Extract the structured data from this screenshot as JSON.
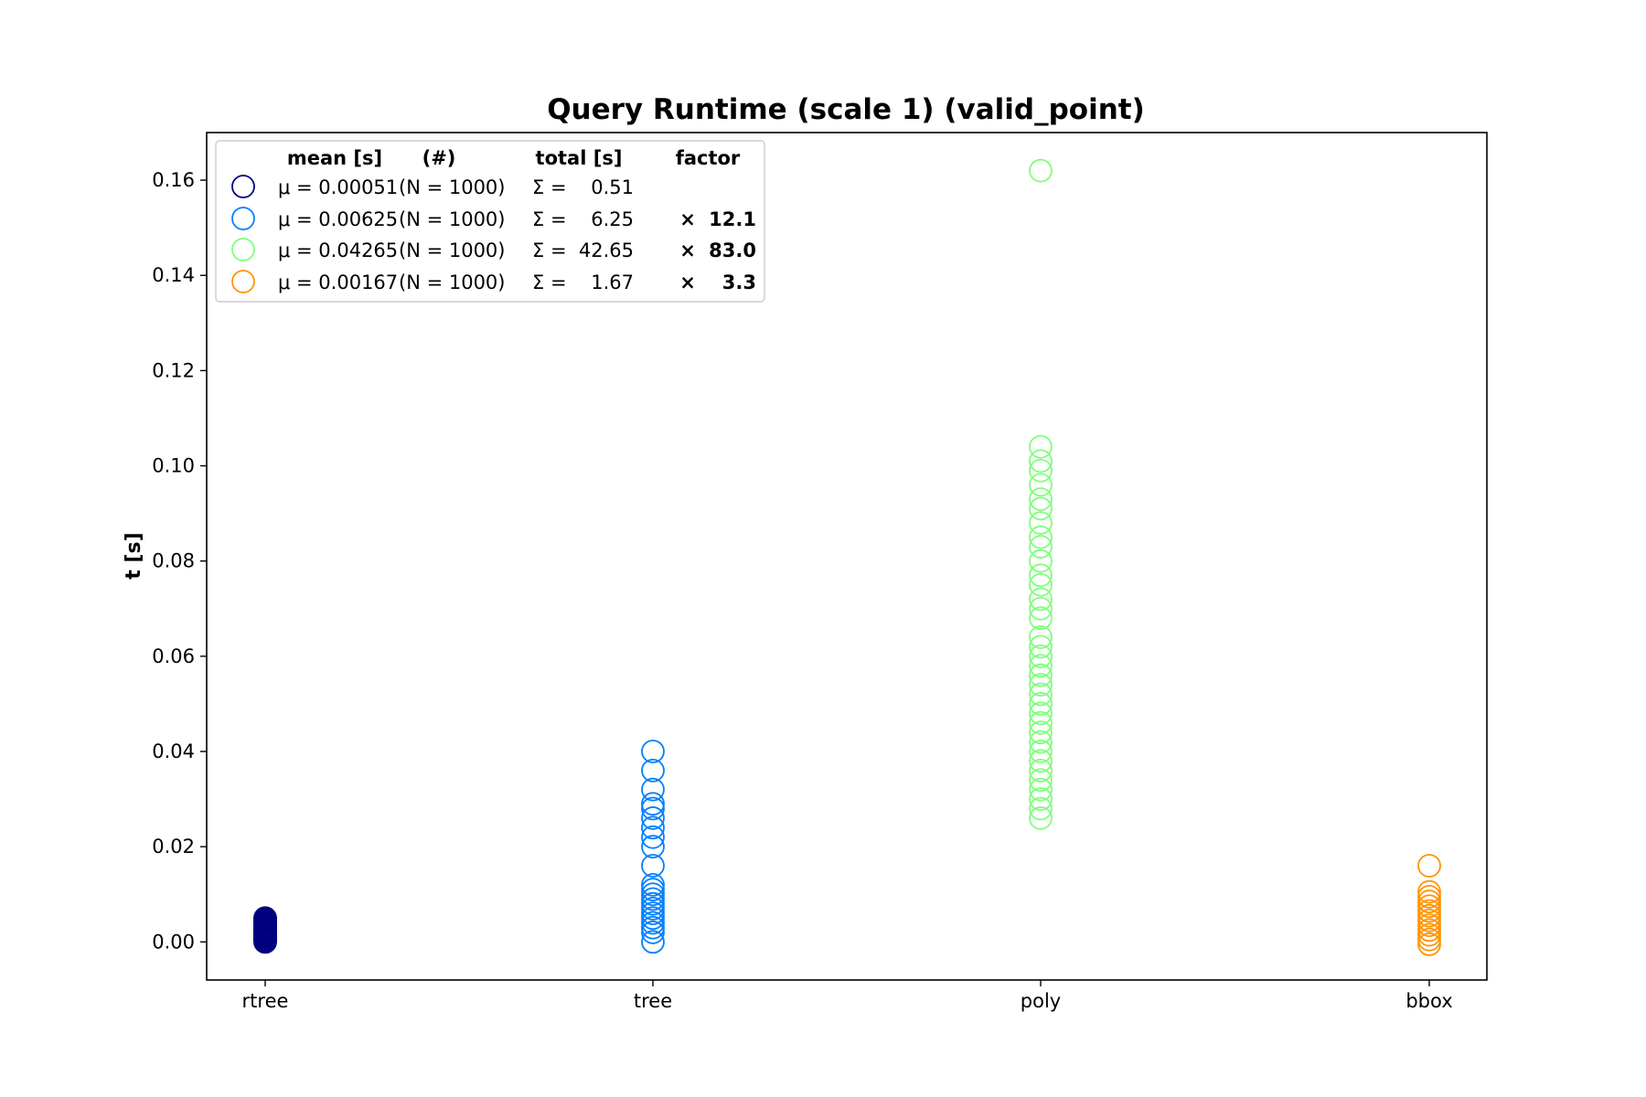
{
  "chart_data": {
    "type": "scatter",
    "title": "Query Runtime (scale 1) (valid_point)",
    "xlabel": "",
    "ylabel": "t [s]",
    "categories": [
      "rtree",
      "tree",
      "poly",
      "bbox"
    ],
    "ylim": [
      -0.008,
      0.17
    ],
    "yticks": [
      "0.00",
      "0.02",
      "0.04",
      "0.06",
      "0.08",
      "0.10",
      "0.12",
      "0.14",
      "0.16"
    ],
    "ytick_values": [
      0.0,
      0.02,
      0.04,
      0.06,
      0.08,
      0.1,
      0.12,
      0.14,
      0.16
    ],
    "grid": false,
    "legend_position": "top-left",
    "legend_header": {
      "mean": "mean [s]",
      "count": "(#)",
      "total": "total [s]",
      "factor": "factor"
    },
    "series": [
      {
        "category": "rtree",
        "color": "#00007f",
        "legend_mean": "μ = 0.00051",
        "legend_count": "(N = 1000)",
        "legend_sigma": "Σ =",
        "legend_total": "0.51",
        "legend_times": "",
        "legend_factor": "",
        "values": [
          0.0,
          0.0003,
          0.0005,
          0.0008,
          0.001,
          0.0013,
          0.0015,
          0.0018,
          0.002,
          0.0023,
          0.0025,
          0.0028,
          0.003,
          0.0033,
          0.0035,
          0.0038,
          0.004,
          0.0043,
          0.0045,
          0.0048,
          0.005
        ]
      },
      {
        "category": "tree",
        "color": "#0080ff",
        "legend_mean": "μ = 0.00625",
        "legend_count": "(N = 1000)",
        "legend_sigma": "Σ =",
        "legend_total": "6.25",
        "legend_times": "×",
        "legend_factor": "12.1",
        "values": [
          0.0,
          0.002,
          0.003,
          0.004,
          0.005,
          0.006,
          0.007,
          0.008,
          0.009,
          0.01,
          0.011,
          0.012,
          0.016,
          0.02,
          0.022,
          0.024,
          0.026,
          0.028,
          0.029,
          0.032,
          0.036,
          0.04
        ]
      },
      {
        "category": "poly",
        "color": "#7dff7a",
        "legend_mean": "μ = 0.04265",
        "legend_count": "(N = 1000)",
        "legend_sigma": "Σ =",
        "legend_total": "42.65",
        "legend_times": "×",
        "legend_factor": "83.0",
        "values": [
          0.026,
          0.028,
          0.03,
          0.032,
          0.034,
          0.036,
          0.038,
          0.04,
          0.042,
          0.044,
          0.046,
          0.048,
          0.05,
          0.052,
          0.054,
          0.056,
          0.058,
          0.06,
          0.062,
          0.064,
          0.068,
          0.07,
          0.072,
          0.075,
          0.077,
          0.08,
          0.083,
          0.085,
          0.088,
          0.091,
          0.093,
          0.096,
          0.099,
          0.101,
          0.104,
          0.162
        ]
      },
      {
        "category": "bbox",
        "color": "#ff9400",
        "legend_mean": "μ = 0.00167",
        "legend_count": "(N = 1000)",
        "legend_sigma": "Σ =",
        "legend_total": "1.67",
        "legend_times": "×",
        "legend_factor": "3.3",
        "values": [
          -0.0005,
          0.0005,
          0.0015,
          0.0025,
          0.0035,
          0.0045,
          0.0055,
          0.0065,
          0.0075,
          0.0085,
          0.0095,
          0.0105,
          0.016
        ]
      }
    ]
  }
}
